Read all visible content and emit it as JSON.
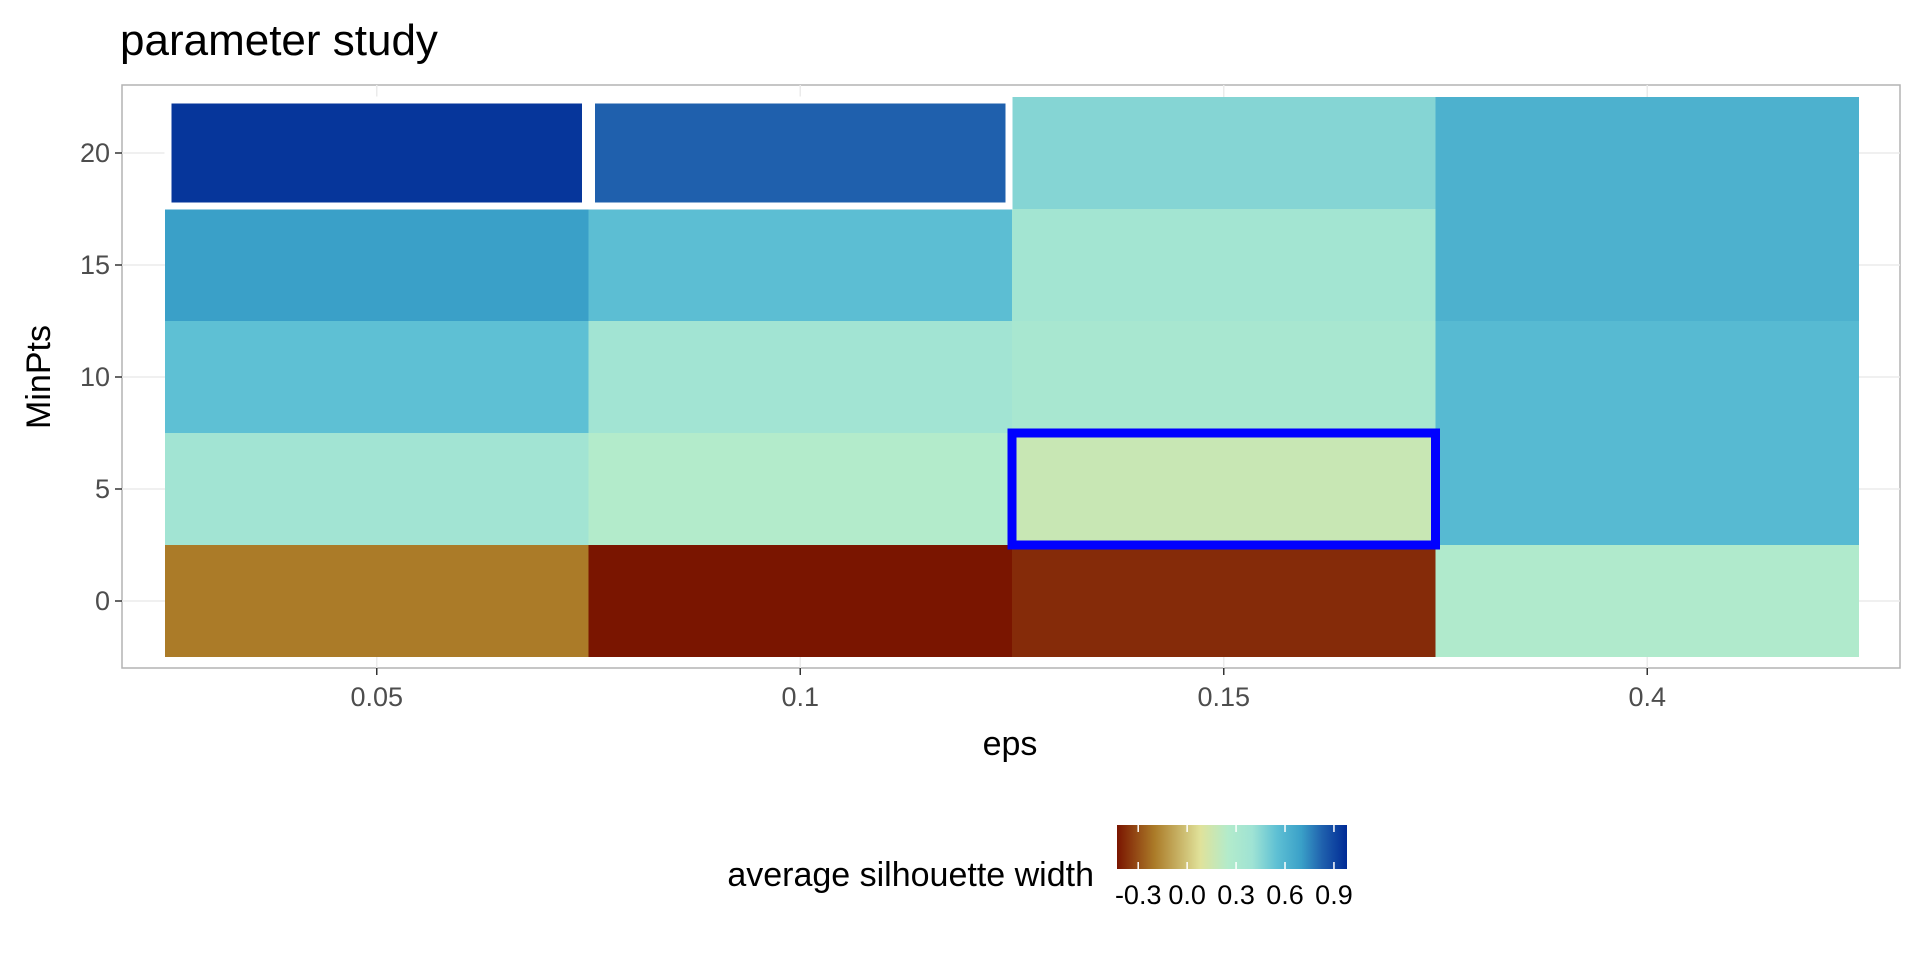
{
  "chart_data": {
    "type": "heatmap",
    "title": "parameter study",
    "xlabel": "eps",
    "ylabel": "MinPts",
    "x_categories": [
      "0.05",
      "0.1",
      "0.15",
      "0.4"
    ],
    "y_ticks": [
      0,
      5,
      10,
      15,
      20
    ],
    "y_range": [
      -2.5,
      22.5
    ],
    "cells": [
      {
        "eps": "0.05",
        "minpts_low": -2.5,
        "minpts_high": 2.5,
        "value": -0.2
      },
      {
        "eps": "0.05",
        "minpts_low": 2.5,
        "minpts_high": 7.5,
        "value": 0.38
      },
      {
        "eps": "0.05",
        "minpts_low": 7.5,
        "minpts_high": 12.5,
        "value": 0.55
      },
      {
        "eps": "0.05",
        "minpts_low": 12.5,
        "minpts_high": 17.5,
        "value": 0.7
      },
      {
        "eps": "0.05",
        "minpts_low": 17.5,
        "minpts_high": 22.5,
        "value": 0.95,
        "highlight": "white"
      },
      {
        "eps": "0.1",
        "minpts_low": -2.5,
        "minpts_high": 2.5,
        "value": -0.43
      },
      {
        "eps": "0.1",
        "minpts_low": 2.5,
        "minpts_high": 7.5,
        "value": 0.25
      },
      {
        "eps": "0.1",
        "minpts_low": 7.5,
        "minpts_high": 12.5,
        "value": 0.38
      },
      {
        "eps": "0.1",
        "minpts_low": 12.5,
        "minpts_high": 17.5,
        "value": 0.56
      },
      {
        "eps": "0.1",
        "minpts_low": 17.5,
        "minpts_high": 22.5,
        "value": 0.83,
        "highlight": "white"
      },
      {
        "eps": "0.15",
        "minpts_low": -2.5,
        "minpts_high": 2.5,
        "value": -0.38
      },
      {
        "eps": "0.15",
        "minpts_low": 2.5,
        "minpts_high": 7.5,
        "value": 0.17,
        "highlight": "blue"
      },
      {
        "eps": "0.15",
        "minpts_low": 7.5,
        "minpts_high": 12.5,
        "value": 0.33
      },
      {
        "eps": "0.15",
        "minpts_low": 12.5,
        "minpts_high": 17.5,
        "value": 0.37
      },
      {
        "eps": "0.15",
        "minpts_low": 17.5,
        "minpts_high": 22.5,
        "value": 0.46
      },
      {
        "eps": "0.4",
        "minpts_low": -2.5,
        "minpts_high": 2.5,
        "value": 0.27
      },
      {
        "eps": "0.4",
        "minpts_low": 2.5,
        "minpts_high": 12.5,
        "value": 0.58
      },
      {
        "eps": "0.4",
        "minpts_low": 12.5,
        "minpts_high": 22.5,
        "value": 0.62
      }
    ],
    "highlight_colors": {
      "white": "#ffffff",
      "blue": "#0000ff"
    },
    "legend": {
      "title": "average silhouette width",
      "position": "bottom",
      "range": [
        -0.43,
        0.98
      ],
      "ticks": [
        -0.3,
        0.0,
        0.3,
        0.6,
        0.9
      ],
      "tick_labels": [
        "-0.3",
        "0.0",
        "0.3",
        "0.6",
        "0.9"
      ]
    },
    "color_scale": [
      {
        "v": -0.43,
        "c": "#7a1500"
      },
      {
        "v": -0.2,
        "c": "#ab7b28"
      },
      {
        "v": 0.08,
        "c": "#e0e29a"
      },
      {
        "v": 0.25,
        "c": "#b3ebcb"
      },
      {
        "v": 0.4,
        "c": "#9fe3d4"
      },
      {
        "v": 0.55,
        "c": "#5ec0d4"
      },
      {
        "v": 0.7,
        "c": "#3aa0c8"
      },
      {
        "v": 0.83,
        "c": "#1f60ad"
      },
      {
        "v": 0.98,
        "c": "#002b96"
      }
    ],
    "grid": true
  }
}
